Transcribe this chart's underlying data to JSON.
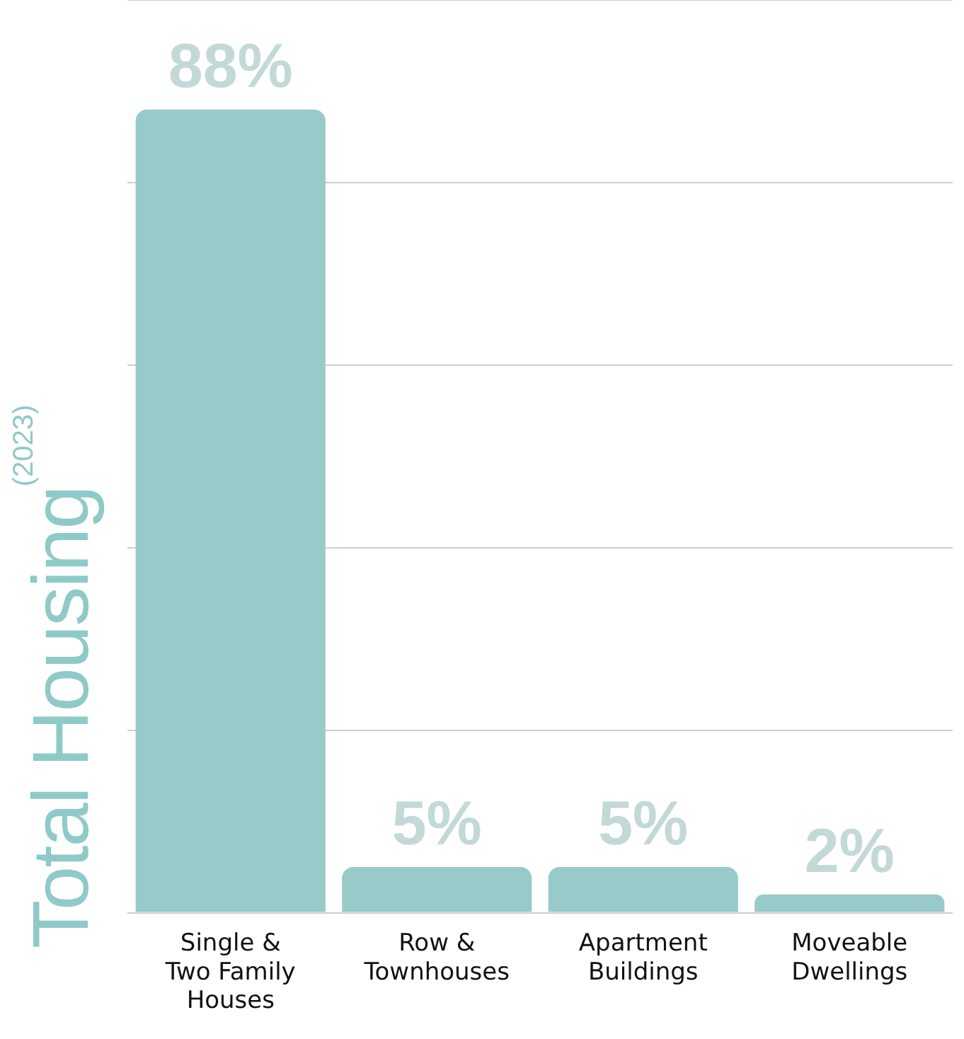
{
  "chart_data": {
    "type": "bar",
    "ylabel": "Total Housing$^{(2023)}$",
    "categories": [
      "Single & Two Family Houses",
      "Row & Townhouses",
      "Apartment Buildings",
      "Moveable Dwellings"
    ],
    "values": [
      88,
      5,
      5,
      2
    ],
    "value_labels": [
      "88%",
      "5%",
      "5%",
      "2%"
    ],
    "color": "#97cac9",
    "grid": "y",
    "tick_labels": "x",
    "legend": false
  }
}
